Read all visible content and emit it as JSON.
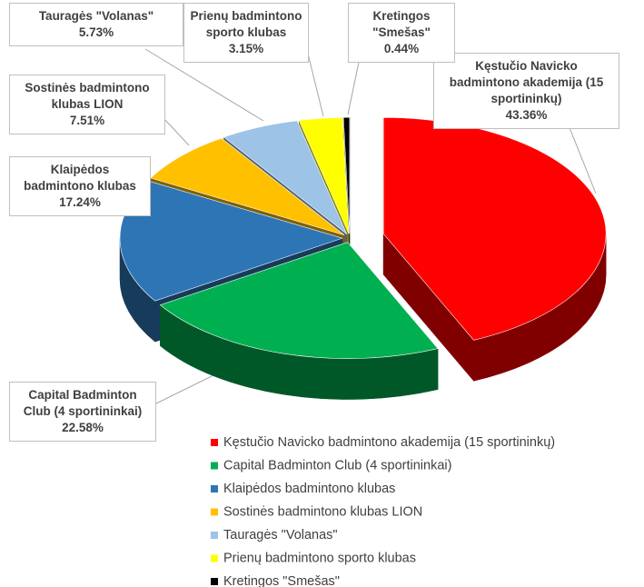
{
  "chart_data": {
    "type": "pie3d",
    "categories": [
      "Kęstučio Navicko badmintono akademija (15 sportininkų)",
      "Capital Badminton Club (4 sportininkai)",
      "Klaipėdos badmintono klubas",
      "Sostinės badmintono klubas LION",
      "Tauragės \"Volanas\"",
      "Prienų badmintono sporto klubas",
      "Kretingos \"Smešas\""
    ],
    "values": [
      43.36,
      22.58,
      17.24,
      7.51,
      5.73,
      3.15,
      0.44
    ],
    "value_labels": [
      "43.36%",
      "22.58%",
      "17.24%",
      "7.51%",
      "5.73%",
      "3.15%",
      "0.44%"
    ],
    "colors": [
      "#ff0000",
      "#00b050",
      "#2e75b6",
      "#ffc000",
      "#9dc3e6",
      "#ffff00",
      "#000000"
    ],
    "legend": "bottom"
  }
}
